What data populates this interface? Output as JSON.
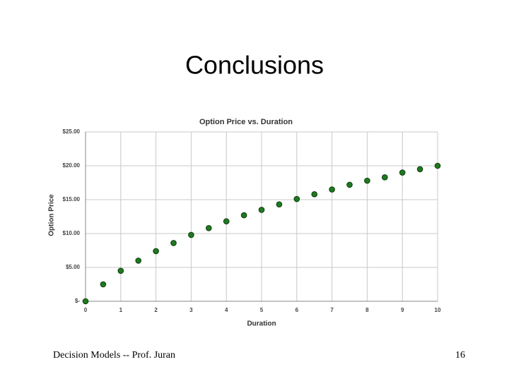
{
  "slide": {
    "title": "Conclusions",
    "footer": "Decision Models -- Prof. Juran",
    "page_number": "16"
  },
  "chart_data": {
    "type": "scatter",
    "title": "Option Price vs. Duration",
    "x_label": "Duration",
    "y_label": "Option Price",
    "x": [
      0,
      0.5,
      1,
      1.5,
      2,
      2.5,
      3,
      3.5,
      4,
      4.5,
      5,
      5.5,
      6,
      6.5,
      7,
      7.5,
      8,
      8.5,
      9,
      9.5,
      10
    ],
    "values": [
      0,
      2.5,
      4.5,
      6.0,
      7.4,
      8.6,
      9.8,
      10.8,
      11.8,
      12.7,
      13.5,
      14.3,
      15.1,
      15.8,
      16.5,
      17.2,
      17.8,
      18.3,
      19.0,
      19.5,
      20.0
    ],
    "color": "#1f7a1f",
    "xlim": [
      0,
      10
    ],
    "xticks": [
      0,
      1,
      2,
      3,
      4,
      5,
      6,
      7,
      8,
      9,
      10
    ],
    "ylim": [
      0,
      25
    ],
    "yticks": [
      {
        "value": 0,
        "label": "$-"
      },
      {
        "value": 5,
        "label": "$5.00"
      },
      {
        "value": 10,
        "label": "$10.00"
      },
      {
        "value": 15,
        "label": "$15.00"
      },
      {
        "value": 20,
        "label": "$20.00"
      },
      {
        "value": 25,
        "label": "$25.00"
      }
    ],
    "grid": true
  }
}
